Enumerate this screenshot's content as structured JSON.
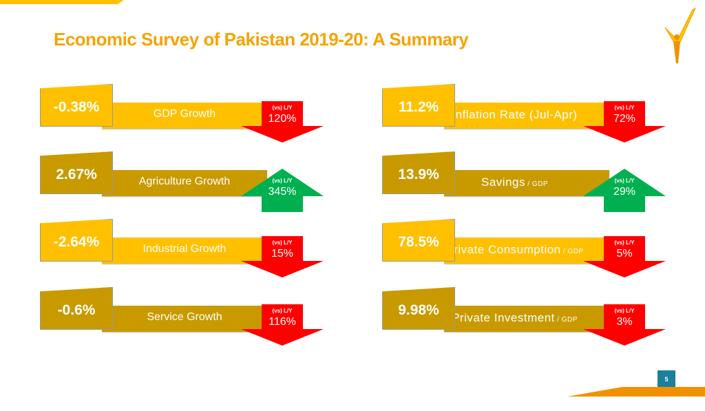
{
  "title": "Economic Survey of Pakistan 2019-20:  A Summary",
  "page_number": "5",
  "colors": {
    "yellow": "#FFC000",
    "dark": "#C89A00",
    "down": "#FF0000",
    "up": "#00B050"
  },
  "cards": [
    {
      "value": "-0.38%",
      "label": "GDP Growth",
      "suffix": "",
      "vs": "(vs) L/Y",
      "change": "120%",
      "direction": "down",
      "tone": "yellow"
    },
    {
      "value": "2.67%",
      "label": "Agriculture Growth",
      "suffix": "",
      "vs": "(vs) L/Y",
      "change": "345%",
      "direction": "up",
      "tone": "dark"
    },
    {
      "value": "-2.64%",
      "label": "Industrial Growth",
      "suffix": "",
      "vs": "(vs) L/Y",
      "change": "15%",
      "direction": "down",
      "tone": "yellow"
    },
    {
      "value": "-0.6%",
      "label": "Service Growth",
      "suffix": "",
      "vs": "(vs) L/Y",
      "change": "116%",
      "direction": "down",
      "tone": "dark"
    },
    {
      "value": "11.2%",
      "label": "Inflation Rate (Jul-Apr)",
      "suffix": "",
      "vs": "(vs) L/Y",
      "change": "72%",
      "direction": "down",
      "tone": "yellow"
    },
    {
      "value": "13.9%",
      "label": "Savings",
      "suffix": " / GDP",
      "vs": "(vs) L/Y",
      "change": "29%",
      "direction": "up",
      "tone": "dark"
    },
    {
      "value": "78.5%",
      "label": "Private Consumption",
      "suffix": " / GDP",
      "vs": "(vs) L/Y",
      "change": "5%",
      "direction": "down",
      "tone": "yellow"
    },
    {
      "value": "9.98%",
      "label": "Private Investment",
      "suffix": " / GDP",
      "vs": "(vs) L/Y",
      "change": "3%",
      "direction": "down",
      "tone": "dark"
    }
  ]
}
